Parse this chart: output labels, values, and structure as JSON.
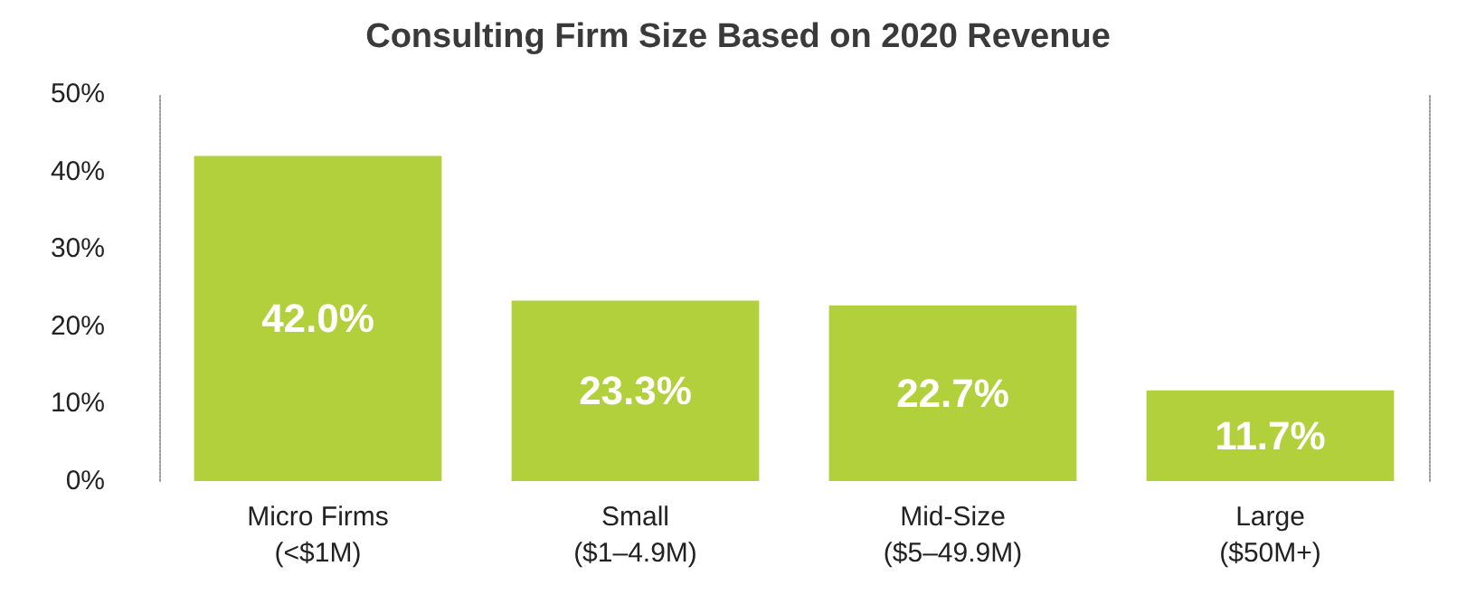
{
  "chart_data": {
    "type": "bar",
    "title": "Consulting Firm Size Based on 2020 Revenue",
    "categories": [
      "Micro Firms\n(<$1M)",
      "Small\n($1–4.9M)",
      "Mid-Size\n($5–49.9M)",
      "Large\n($50M+)"
    ],
    "values": [
      42.0,
      23.3,
      22.7,
      11.7
    ],
    "value_labels": [
      "42.0%",
      "23.3%",
      "22.7%",
      "11.7%"
    ],
    "color": "#b2d03c",
    "ylim": [
      0,
      50
    ],
    "yticks": [
      {
        "value": 0,
        "label": "0%"
      },
      {
        "value": 10,
        "label": "10%"
      },
      {
        "value": 20,
        "label": "20%"
      },
      {
        "value": 30,
        "label": "30%"
      },
      {
        "value": 40,
        "label": "40%"
      },
      {
        "value": 50,
        "label": "50%"
      }
    ],
    "grid": false
  }
}
